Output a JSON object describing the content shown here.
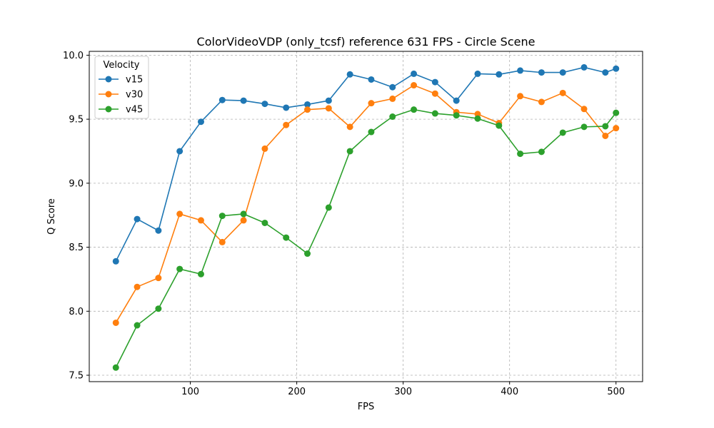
{
  "chart_data": {
    "type": "line",
    "title": "ColorVideoVDP (only_tcsf) reference 631 FPS - Circle Scene",
    "xlabel": "FPS",
    "ylabel": "Q Score",
    "xlim": [
      5,
      525
    ],
    "ylim": [
      7.45,
      10.03
    ],
    "xticks": [
      100,
      200,
      300,
      400,
      500
    ],
    "yticks": [
      7.5,
      8.0,
      8.5,
      9.0,
      9.5,
      10.0
    ],
    "xtick_labels": [
      "100",
      "200",
      "300",
      "400",
      "500"
    ],
    "ytick_labels": [
      "7.5",
      "8.0",
      "8.5",
      "9.0",
      "9.5",
      "10.0"
    ],
    "grid": true,
    "legend": {
      "title": "Velocity",
      "position": "top-left"
    },
    "x": [
      30,
      50,
      70,
      90,
      110,
      130,
      150,
      170,
      190,
      210,
      230,
      250,
      270,
      290,
      310,
      330,
      350,
      370,
      390,
      410,
      430,
      450,
      470,
      490,
      500
    ],
    "series": [
      {
        "name": "v15",
        "color": "#1f77b4",
        "values": [
          8.39,
          8.72,
          8.63,
          9.25,
          9.48,
          9.65,
          9.645,
          9.62,
          9.59,
          9.615,
          9.645,
          9.85,
          9.81,
          9.75,
          9.855,
          9.79,
          9.645,
          9.855,
          9.85,
          9.88,
          9.865,
          9.865,
          9.905,
          9.865,
          9.895
        ]
      },
      {
        "name": "v30",
        "color": "#ff7f0e",
        "values": [
          7.91,
          8.19,
          8.26,
          8.76,
          8.71,
          8.54,
          8.71,
          9.27,
          9.455,
          9.575,
          9.585,
          9.44,
          9.625,
          9.66,
          9.765,
          9.7,
          9.555,
          9.54,
          9.47,
          9.68,
          9.635,
          9.705,
          9.58,
          9.37,
          9.43
        ]
      },
      {
        "name": "v45",
        "color": "#2ca02c",
        "values": [
          7.56,
          7.89,
          8.02,
          8.33,
          8.29,
          8.745,
          8.76,
          8.69,
          8.575,
          8.45,
          8.81,
          9.25,
          9.4,
          9.52,
          9.575,
          9.545,
          9.53,
          9.505,
          9.45,
          9.23,
          9.245,
          9.395,
          9.44,
          9.445,
          9.55
        ]
      }
    ]
  }
}
